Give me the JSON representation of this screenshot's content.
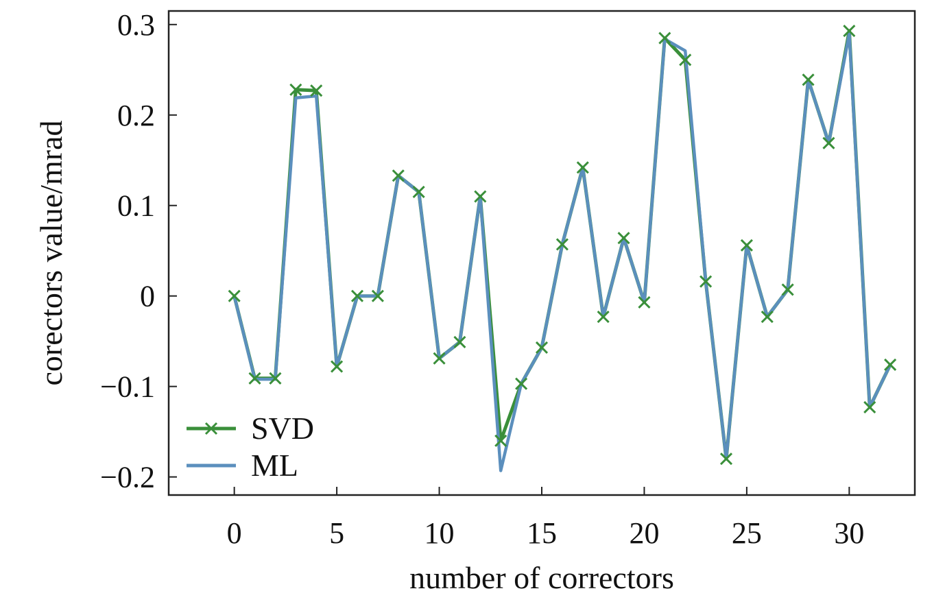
{
  "chart_data": {
    "type": "line",
    "title": "",
    "xlabel": "number of correctors",
    "ylabel": "corectors value/mrad",
    "xlim": [
      -3.2,
      33.2
    ],
    "ylim": [
      -0.22,
      0.315
    ],
    "x": [
      0,
      1,
      2,
      3,
      4,
      5,
      6,
      7,
      8,
      9,
      10,
      11,
      12,
      13,
      14,
      15,
      16,
      17,
      18,
      19,
      20,
      21,
      22,
      23,
      24,
      25,
      26,
      27,
      28,
      29,
      30,
      31,
      32
    ],
    "x_ticks": [
      0,
      5,
      10,
      15,
      20,
      25,
      30
    ],
    "x_tick_labels": [
      "0",
      "5",
      "10",
      "15",
      "20",
      "25",
      "30"
    ],
    "y_ticks": [
      -0.2,
      -0.1,
      0,
      0.1,
      0.2,
      0.3
    ],
    "y_tick_labels": [
      "−0.2",
      "−0.1",
      "0",
      "0.1",
      "0.2",
      "0.3"
    ],
    "grid": false,
    "legend_position": "bottom-left",
    "series": [
      {
        "name": "SVD",
        "color": "#3a8f3a",
        "marker": "x",
        "values": [
          0.0,
          -0.091,
          -0.091,
          0.228,
          0.227,
          -0.078,
          0.0,
          0.0,
          0.133,
          0.115,
          -0.069,
          -0.051,
          0.11,
          -0.16,
          -0.097,
          -0.057,
          0.057,
          0.142,
          -0.023,
          0.064,
          -0.007,
          0.285,
          0.261,
          0.016,
          -0.18,
          0.056,
          -0.023,
          0.007,
          0.239,
          0.169,
          0.293,
          -0.123,
          -0.076
        ]
      },
      {
        "name": "ML",
        "color": "#5b8fbd",
        "marker": "none",
        "values": [
          0.0,
          -0.092,
          -0.092,
          0.219,
          0.221,
          -0.078,
          0.0,
          0.0,
          0.133,
          0.115,
          -0.069,
          -0.051,
          0.11,
          -0.193,
          -0.097,
          -0.057,
          0.057,
          0.142,
          -0.023,
          0.064,
          -0.007,
          0.284,
          0.271,
          0.016,
          -0.18,
          0.056,
          -0.023,
          0.007,
          0.239,
          0.169,
          0.29,
          -0.123,
          -0.076
        ]
      }
    ]
  }
}
